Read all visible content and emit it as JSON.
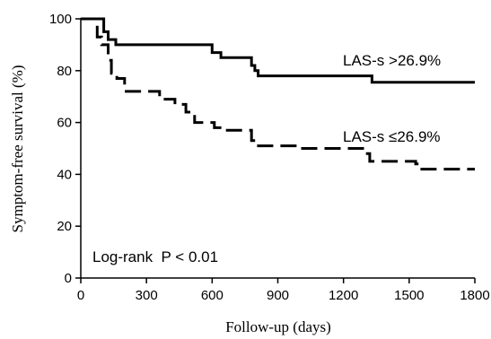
{
  "chart_data": {
    "type": "line",
    "subtype": "kaplan-meier step",
    "title": "",
    "xlabel": "Follow-up (days)",
    "ylabel": "Symptom-free survival (%)",
    "xlim": [
      0,
      1800
    ],
    "ylim": [
      0,
      100
    ],
    "xticks": [
      0,
      300,
      600,
      900,
      1200,
      1500,
      1800
    ],
    "yticks": [
      0,
      20,
      40,
      60,
      80,
      100
    ],
    "grid": false,
    "legend": "none (series labelled directly on plot)",
    "annotation": "Log-rank  P < 0.01",
    "series": [
      {
        "name": "LAS-s >26.9%",
        "style": "solid",
        "color": "#000000",
        "x": [
          0,
          90,
          105,
          125,
          160,
          570,
          600,
          640,
          660,
          690,
          780,
          795,
          810,
          1330,
          1800
        ],
        "y": [
          100,
          100,
          95,
          92,
          90,
          90,
          87,
          85,
          85,
          85,
          82,
          80,
          78,
          75.5,
          75.5
        ]
      },
      {
        "name": "LAS-s ≤26.9%",
        "style": "dashed",
        "color": "#000000",
        "x": [
          0,
          55,
          75,
          95,
          125,
          140,
          165,
          200,
          360,
          430,
          480,
          520,
          570,
          610,
          660,
          780,
          800,
          1000,
          1300,
          1320,
          1530,
          1550,
          1800
        ],
        "y": [
          100,
          100,
          93,
          90,
          84,
          79,
          77,
          72,
          69,
          67,
          64,
          60,
          60,
          58,
          57,
          53,
          51,
          50,
          48,
          45,
          44,
          42,
          42
        ]
      }
    ]
  }
}
